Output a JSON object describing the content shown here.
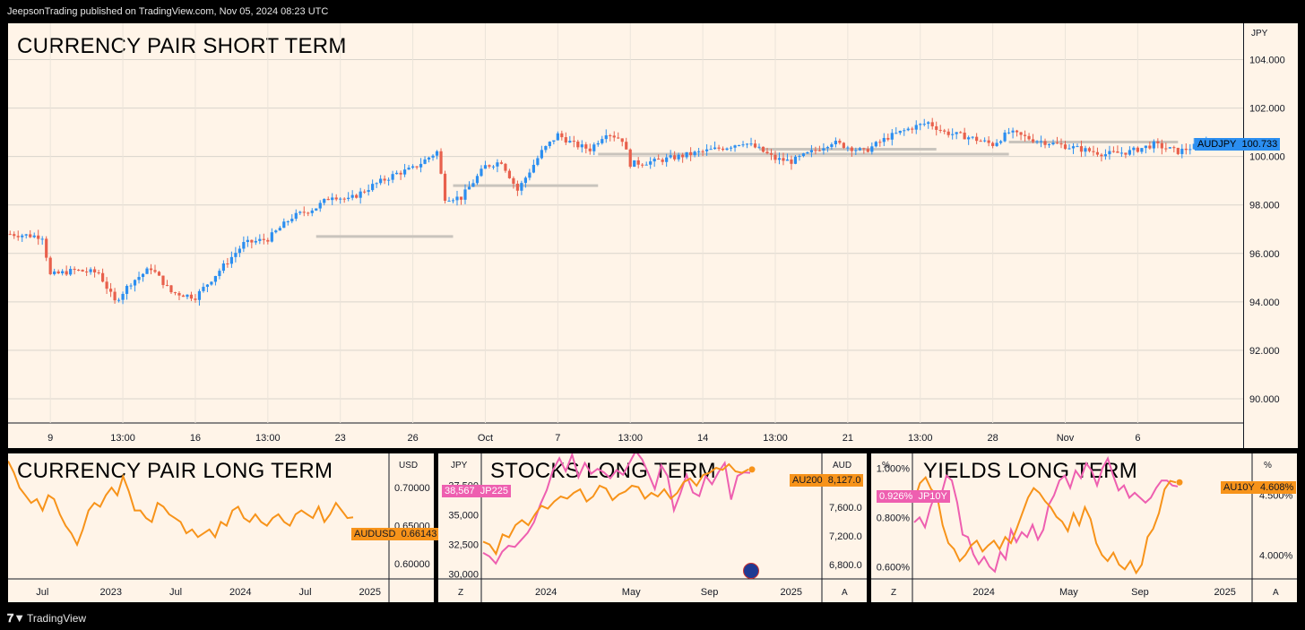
{
  "header": {
    "published": "JeepsonTrading published on TradingView.com, Nov 05, 2024 08:23 UTC"
  },
  "footer": {
    "brand": "TradingView"
  },
  "colors": {
    "up": "#2b8ef0",
    "down": "#e8604c",
    "orange": "#f7931a",
    "pink": "#ee5fb0",
    "bg": "#fff4e8",
    "grid": "#d9d4cc",
    "level": "#c9c4bd",
    "price_badge": "#2b8ef0"
  },
  "chart_data": [
    {
      "type": "candlestick",
      "title": "CURRENCY PAIR SHORT TERM",
      "unit": "JPY",
      "symbol": "AUDJPY",
      "last_price": "100.733",
      "ylim": [
        89.0,
        105.5
      ],
      "y_ticks": [
        "104.000",
        "102.000",
        "100.000",
        "98.000",
        "96.000",
        "94.000",
        "92.000",
        "90.000"
      ],
      "y_tick_values": [
        104,
        102,
        100,
        98,
        96,
        94,
        92,
        90
      ],
      "x_ticks": [
        "9",
        "13:00",
        "16",
        "13:00",
        "23",
        "26",
        "Oct",
        "7",
        "13:00",
        "14",
        "13:00",
        "21",
        "13:00",
        "28",
        "Nov",
        "6"
      ],
      "x_tick_index": [
        10,
        28,
        46,
        64,
        82,
        100,
        118,
        136,
        154,
        172,
        190,
        208,
        226,
        244,
        262,
        280
      ],
      "candle_count": 300,
      "closes_keypoints": [
        [
          0,
          96.8
        ],
        [
          8,
          96.7
        ],
        [
          10,
          95.1
        ],
        [
          16,
          95.3
        ],
        [
          22,
          95.2
        ],
        [
          26,
          94.0
        ],
        [
          30,
          94.8
        ],
        [
          35,
          95.4
        ],
        [
          40,
          94.4
        ],
        [
          46,
          94.2
        ],
        [
          52,
          95.3
        ],
        [
          58,
          96.4
        ],
        [
          64,
          96.6
        ],
        [
          70,
          97.5
        ],
        [
          76,
          97.9
        ],
        [
          80,
          98.4
        ],
        [
          84,
          98.2
        ],
        [
          90,
          98.8
        ],
        [
          96,
          99.3
        ],
        [
          100,
          99.5
        ],
        [
          106,
          100.2
        ],
        [
          108,
          98.3
        ],
        [
          112,
          98.3
        ],
        [
          118,
          99.6
        ],
        [
          122,
          99.8
        ],
        [
          126,
          98.6
        ],
        [
          132,
          100.2
        ],
        [
          136,
          100.9
        ],
        [
          140,
          100.5
        ],
        [
          144,
          100.3
        ],
        [
          148,
          101.0
        ],
        [
          152,
          100.7
        ],
        [
          154,
          99.7
        ],
        [
          160,
          99.8
        ],
        [
          166,
          100.0
        ],
        [
          172,
          100.2
        ],
        [
          178,
          100.4
        ],
        [
          182,
          100.6
        ],
        [
          186,
          100.3
        ],
        [
          190,
          99.9
        ],
        [
          194,
          99.8
        ],
        [
          198,
          100.1
        ],
        [
          204,
          100.6
        ],
        [
          208,
          100.4
        ],
        [
          212,
          100.2
        ],
        [
          218,
          100.8
        ],
        [
          224,
          101.2
        ],
        [
          228,
          101.4
        ],
        [
          232,
          101.0
        ],
        [
          238,
          100.8
        ],
        [
          244,
          100.5
        ],
        [
          248,
          101.0
        ],
        [
          254,
          100.7
        ],
        [
          260,
          100.5
        ],
        [
          266,
          100.3
        ],
        [
          272,
          100.1
        ],
        [
          278,
          100.2
        ],
        [
          284,
          100.5
        ],
        [
          290,
          100.2
        ],
        [
          300,
          100.75
        ]
      ],
      "levels": [
        {
          "y": 96.7,
          "from": 76,
          "to": 110
        },
        {
          "y": 98.8,
          "from": 110,
          "to": 146
        },
        {
          "y": 100.1,
          "from": 146,
          "to": 248
        },
        {
          "y": 100.3,
          "from": 186,
          "to": 230
        },
        {
          "y": 100.6,
          "from": 248,
          "to": 290
        }
      ]
    },
    {
      "type": "line",
      "title": "CURRENCY PAIR LONG TERM",
      "unit": "USD",
      "symbol": "AUDUSD",
      "last_price": "0.66143",
      "ylim": [
        0.58,
        0.745
      ],
      "y_ticks": [
        "0.70000",
        "0.65000",
        "0.60000"
      ],
      "y_tick_values": [
        0.7,
        0.65,
        0.6
      ],
      "x_ticks": [
        "Jul",
        "2023",
        "Jul",
        "2024",
        "Jul",
        "2025"
      ],
      "x_tick_fraction": [
        0.09,
        0.27,
        0.44,
        0.61,
        0.78,
        0.95
      ],
      "series": [
        {
          "values": [
            0.735,
            0.72,
            0.7,
            0.69,
            0.68,
            0.685,
            0.67,
            0.69,
            0.685,
            0.665,
            0.65,
            0.64,
            0.625,
            0.645,
            0.67,
            0.68,
            0.675,
            0.69,
            0.7,
            0.69,
            0.715,
            0.695,
            0.67,
            0.67,
            0.66,
            0.655,
            0.68,
            0.675,
            0.665,
            0.66,
            0.655,
            0.64,
            0.645,
            0.635,
            0.64,
            0.645,
            0.635,
            0.655,
            0.65,
            0.67,
            0.675,
            0.66,
            0.655,
            0.665,
            0.655,
            0.65,
            0.66,
            0.665,
            0.655,
            0.65,
            0.665,
            0.67,
            0.665,
            0.66,
            0.675,
            0.655,
            0.665,
            0.68,
            0.67,
            0.66,
            0.661
          ]
        }
      ]
    },
    {
      "type": "line",
      "title": "STOCKS LONG TERM",
      "unit_left": "JPY",
      "unit_right": "AUD",
      "left_badge": {
        "symbol": "JP225",
        "value": "38,567"
      },
      "right_badge": {
        "symbol": "AU200",
        "value": "8,127.0"
      },
      "ylim_left": [
        29600,
        40200
      ],
      "ylim_right": [
        6600,
        8350
      ],
      "y_ticks_left": [
        "37,500",
        "35,000",
        "32,500",
        "30,000"
      ],
      "y_tick_values_left": [
        37500,
        35000,
        32500,
        30000
      ],
      "y_ticks_right": [
        "7,600.0",
        "7,200.0",
        "6,800.0"
      ],
      "y_tick_values_right": [
        7600,
        7200,
        6800
      ],
      "x_ticks": [
        "2024",
        "May",
        "Sep",
        "2025"
      ],
      "x_tick_fraction": [
        0.19,
        0.44,
        0.67,
        0.91
      ],
      "footer_left": "Z",
      "footer_right": "A",
      "series": [
        {
          "name": "JP225",
          "axis": "left",
          "values": [
            31800,
            31500,
            30900,
            31900,
            32400,
            32300,
            32900,
            33500,
            34400,
            35900,
            37100,
            38800,
            39800,
            38700,
            40100,
            38200,
            39400,
            38500,
            38900,
            38600,
            38100,
            38800,
            38400,
            39400,
            40400,
            39700,
            38500,
            37200,
            39200,
            38300,
            35400,
            36800,
            38400,
            36900,
            36600,
            38300,
            37600,
            38600,
            39400,
            36300,
            38300,
            38600,
            38567
          ]
        },
        {
          "name": "AU200",
          "axis": "right",
          "values": [
            7120,
            7080,
            6950,
            7220,
            7180,
            7350,
            7420,
            7350,
            7500,
            7620,
            7580,
            7680,
            7750,
            7720,
            7800,
            7850,
            7680,
            7750,
            7900,
            7860,
            7700,
            7780,
            7820,
            7900,
            7880,
            7720,
            7800,
            7750,
            7850,
            7720,
            7800,
            7950,
            8000,
            7900,
            8050,
            8080,
            8150,
            8120,
            8200,
            8100,
            8080,
            8127
          ]
        }
      ]
    },
    {
      "type": "line",
      "title": "YIELDS LONG TERM",
      "unit_left": "%",
      "unit_right": "%",
      "left_badge": {
        "symbol": "JP10Y",
        "value": "0.926%"
      },
      "right_badge": {
        "symbol": "AU10Y",
        "value": "4.608%"
      },
      "ylim_left": [
        0.55,
        1.06
      ],
      "ylim_right": [
        3.8,
        4.85
      ],
      "y_ticks_left": [
        "1.000%",
        "0.800%",
        "0.600%"
      ],
      "y_tick_values_left": [
        1.0,
        0.8,
        0.6
      ],
      "y_ticks_right": [
        "4.500%",
        "4.000%"
      ],
      "y_tick_values_right": [
        4.5,
        4.0
      ],
      "x_ticks": [
        "2024",
        "May",
        "Sep",
        "2025"
      ],
      "x_tick_fraction": [
        0.21,
        0.46,
        0.67,
        0.92
      ],
      "footer_left": "Z",
      "footer_right": "A",
      "series": [
        {
          "name": "JP10Y",
          "axis": "left",
          "values": [
            0.78,
            0.8,
            0.76,
            0.84,
            0.9,
            0.89,
            0.97,
            0.95,
            0.86,
            0.73,
            0.72,
            0.65,
            0.61,
            0.64,
            0.6,
            0.58,
            0.66,
            0.63,
            0.75,
            0.7,
            0.74,
            0.72,
            0.77,
            0.71,
            0.75,
            0.85,
            0.89,
            0.95,
            0.97,
            0.92,
            0.99,
            0.96,
            1.02,
            0.99,
            0.93,
            1.0,
            1.04,
            0.97,
            0.91,
            0.93,
            0.88,
            0.9,
            0.88,
            0.86,
            0.88,
            0.92,
            0.95,
            0.95,
            0.93,
            0.926
          ]
        },
        {
          "name": "AU10Y",
          "axis": "right",
          "values": [
            4.45,
            4.6,
            4.65,
            4.55,
            4.5,
            4.25,
            4.1,
            4.05,
            3.95,
            4.0,
            4.08,
            4.12,
            4.03,
            4.08,
            4.12,
            4.05,
            4.15,
            4.1,
            4.22,
            4.35,
            4.48,
            4.56,
            4.52,
            4.45,
            4.4,
            4.32,
            4.28,
            4.2,
            4.35,
            4.25,
            4.4,
            4.3,
            4.1,
            4.0,
            3.95,
            4.02,
            3.92,
            3.88,
            3.95,
            3.85,
            3.92,
            4.15,
            4.22,
            4.35,
            4.55,
            4.62,
            4.608
          ]
        }
      ]
    }
  ]
}
